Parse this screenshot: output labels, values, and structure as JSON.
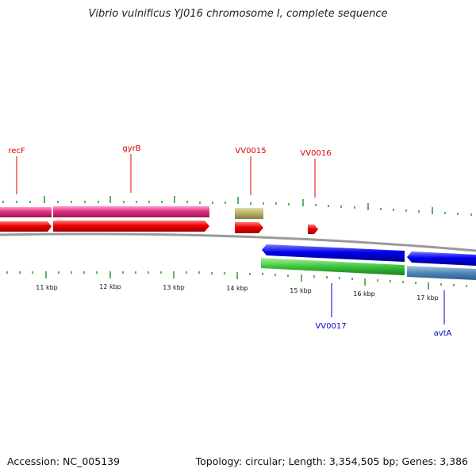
{
  "title": "Vibrio vulnificus YJ016 chromosome I, complete sequence",
  "footer": {
    "accession": "Accession: NC_005139",
    "summary": "Topology: circular; Length: 3,354,505 bp; Genes: 3,386"
  },
  "colors": {
    "forward_label": "#e00000",
    "reverse_label": "#0000cc",
    "tick": "#228b22",
    "backbone": "#9a9a9a"
  },
  "axis_labels": [
    "11 kbp",
    "12 kbp",
    "13 kbp",
    "14 kbp",
    "15 kbp",
    "16 kbp",
    "17 kbp"
  ],
  "gene_labels": {
    "forward": [
      "recF",
      "gyrB",
      "VV0015",
      "VV0016"
    ],
    "reverse": [
      "VV0017",
      "avtA"
    ]
  }
}
